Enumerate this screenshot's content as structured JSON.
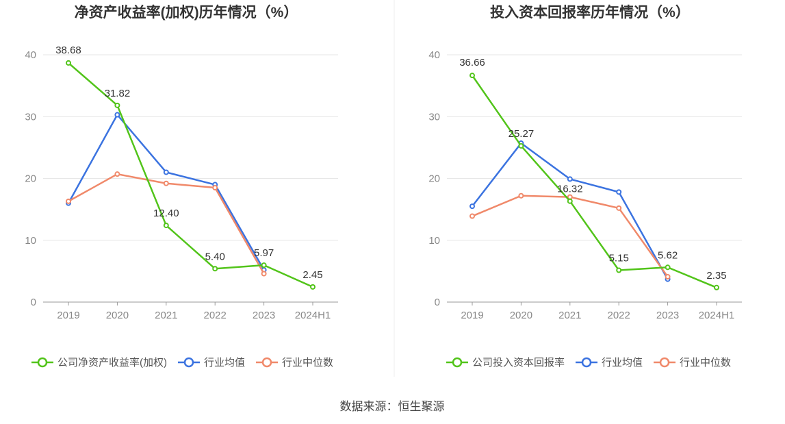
{
  "chart_data": [
    {
      "type": "line",
      "title": "净资产收益率(加权)历年情况（%）",
      "categories": [
        "2019",
        "2020",
        "2021",
        "2022",
        "2023",
        "2024H1"
      ],
      "ylim": [
        0,
        40
      ],
      "yticks": [
        0,
        10,
        20,
        30,
        40
      ],
      "grid": true,
      "legend_position": "bottom",
      "series": [
        {
          "name": "公司净资产收益率(加权)",
          "color": "#52c41a",
          "values": [
            38.68,
            31.82,
            12.4,
            5.4,
            5.97,
            2.45
          ],
          "labels": [
            "38.68",
            "31.82",
            "12.40",
            "5.40",
            "5.97",
            "2.45"
          ]
        },
        {
          "name": "行业均值",
          "color": "#3b73e0",
          "values": [
            16.0,
            30.3,
            21.0,
            19.0,
            5.2,
            null
          ]
        },
        {
          "name": "行业中位数",
          "color": "#f0896a",
          "values": [
            16.3,
            20.7,
            19.2,
            18.5,
            4.6,
            null
          ]
        }
      ]
    },
    {
      "type": "line",
      "title": "投入资本回报率历年情况（%）",
      "categories": [
        "2019",
        "2020",
        "2021",
        "2022",
        "2023",
        "2024H1"
      ],
      "ylim": [
        0,
        40
      ],
      "yticks": [
        0,
        10,
        20,
        30,
        40
      ],
      "grid": true,
      "legend_position": "bottom",
      "series": [
        {
          "name": "公司投入资本回报率",
          "color": "#52c41a",
          "values": [
            36.66,
            25.27,
            16.32,
            5.15,
            5.62,
            2.35
          ],
          "labels": [
            "36.66",
            "25.27",
            "16.32",
            "5.15",
            "5.62",
            "2.35"
          ]
        },
        {
          "name": "行业均值",
          "color": "#3b73e0",
          "values": [
            15.5,
            25.7,
            19.9,
            17.8,
            3.7,
            null
          ]
        },
        {
          "name": "行业中位数",
          "color": "#f0896a",
          "values": [
            13.9,
            17.2,
            17.0,
            15.2,
            4.1,
            null
          ]
        }
      ]
    }
  ],
  "footer": {
    "source": "数据来源：恒生聚源"
  }
}
